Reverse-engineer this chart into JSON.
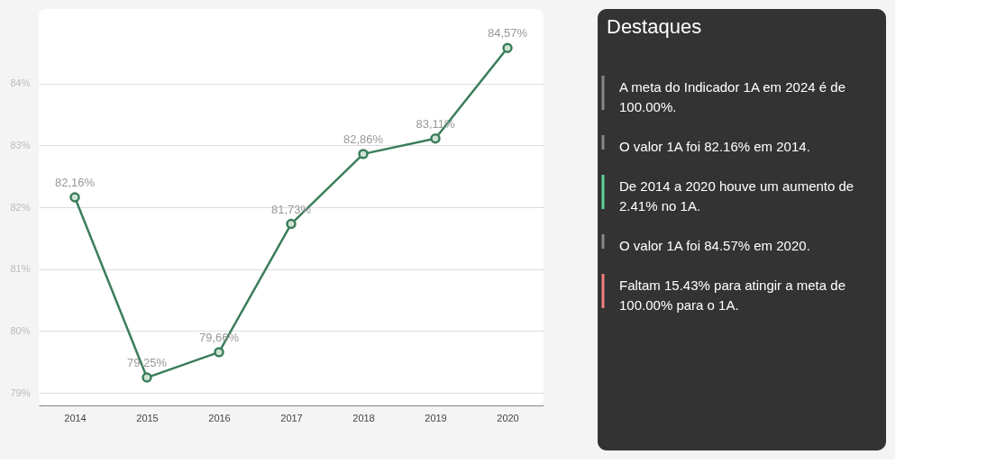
{
  "chart_data": [
    {
      "type": "line",
      "categories": [
        "2014",
        "2015",
        "2016",
        "2017",
        "2018",
        "2019",
        "2020"
      ],
      "series": [
        {
          "color": "#3a7d5a",
          "values": [
            82.16,
            79.25,
            79.66,
            81.73,
            82.86,
            83.11,
            84.57
          ],
          "value_labels": [
            "82,16%",
            "79,25%",
            "79,66%",
            "81,73%",
            "82,86%",
            "83,11%",
            "84,57%"
          ]
        }
      ],
      "ylim": [
        78.8,
        85.2
      ],
      "yticks": [
        {
          "value": 79,
          "label": "79%"
        },
        {
          "value": 80,
          "label": "80%"
        },
        {
          "value": 81,
          "label": "81%"
        },
        {
          "value": 82,
          "label": "82%"
        },
        {
          "value": 83,
          "label": "83%"
        },
        {
          "value": 84,
          "label": "84%"
        }
      ],
      "grid": "y",
      "marker": "circle",
      "line_style": "solid"
    },
    {
      "type": "other",
      "title": "Destaques",
      "annotations": [
        "A meta do Indicador 1A em 2024 é de 100.00%.",
        "O valor 1A foi 82.16% em 2014.",
        "De 2014 a 2020 houve um aumento de 2.41% no 1A.",
        "O valor 1A foi 84.57% em 2020.",
        "Faltam 15.43% para atingir a meta de 100.00% para o 1A."
      ]
    }
  ]
}
